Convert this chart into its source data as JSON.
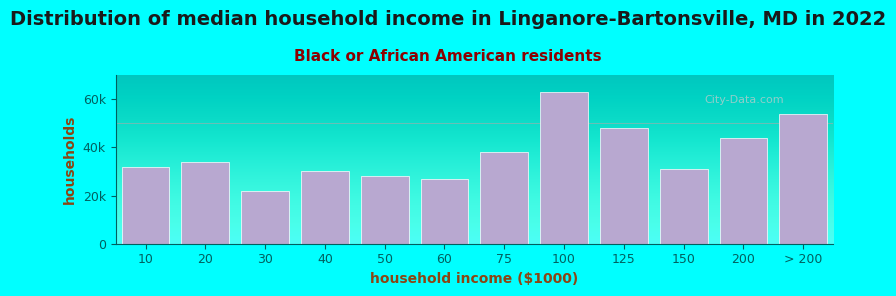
{
  "title": "Distribution of median household income in Linganore-Bartonsville, MD in 2022",
  "subtitle": "Black or African American residents",
  "xlabel": "household income ($1000)",
  "ylabel": "households",
  "background_color": "#00FFFF",
  "plot_bg_top": "#e8f5e0",
  "plot_bg_bottom": "#ffffff",
  "bar_color": "#b8a8d0",
  "bar_edge_color": "#ffffff",
  "categories": [
    "10",
    "20",
    "30",
    "40",
    "50",
    "60",
    "75",
    "100",
    "125",
    "150",
    "200",
    "> 200"
  ],
  "values": [
    32000,
    34000,
    22000,
    30000,
    28000,
    27000,
    38000,
    63000,
    48000,
    31000,
    44000,
    54000
  ],
  "ylim": [
    0,
    70000
  ],
  "title_fontsize": 14,
  "subtitle_fontsize": 11,
  "axis_label_fontsize": 10,
  "tick_fontsize": 9,
  "title_color": "#1a1a1a",
  "subtitle_color": "#8B0000",
  "axis_label_color": "#8B4513",
  "tick_color": "#006060",
  "watermark": "City-Data.com"
}
